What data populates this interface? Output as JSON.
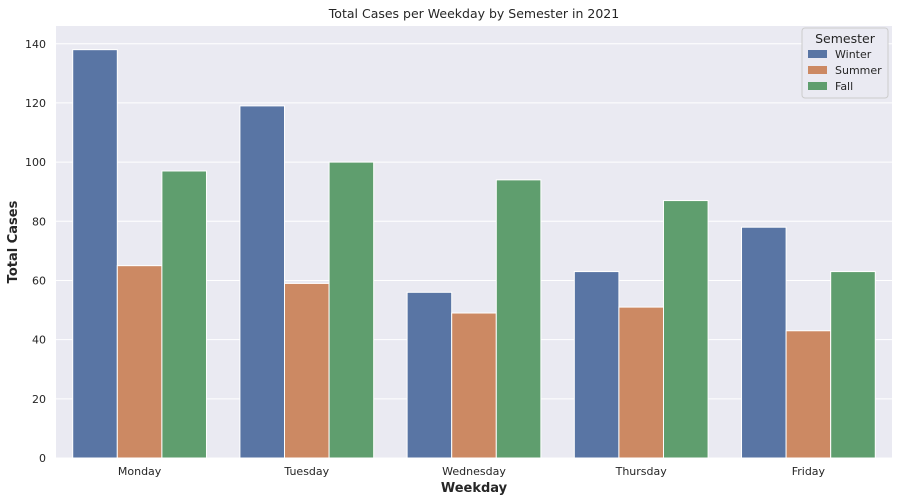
{
  "chart_data": {
    "type": "bar",
    "title": "Total Cases per Weekday by Semester in 2021",
    "xlabel": "Weekday",
    "ylabel": "Total Cases",
    "categories": [
      "Monday",
      "Tuesday",
      "Wednesday",
      "Thursday",
      "Friday"
    ],
    "series": [
      {
        "name": "Winter",
        "color": "#5975a4",
        "values": [
          138,
          119,
          56,
          63,
          78
        ]
      },
      {
        "name": "Summer",
        "color": "#cc8963",
        "values": [
          65,
          59,
          49,
          51,
          43
        ]
      },
      {
        "name": "Fall",
        "color": "#5f9e6e",
        "values": [
          97,
          100,
          94,
          87,
          63
        ]
      }
    ],
    "ylim": [
      0,
      146
    ],
    "yticks": [
      0,
      20,
      40,
      60,
      80,
      100,
      120,
      140
    ],
    "grid": true,
    "legend": {
      "title": "Semester",
      "position": "top-right"
    },
    "background": "#eaeaf2"
  }
}
